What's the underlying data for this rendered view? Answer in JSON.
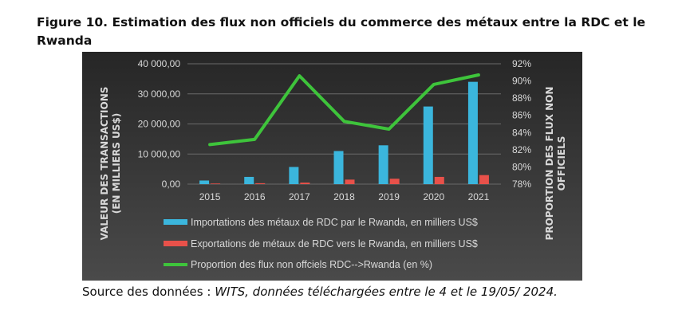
{
  "figure": {
    "title": "Figure 10. Estimation des flux non officiels du commerce des métaux entre la RDC et le Rwanda",
    "source_label": "Source des données : ",
    "source_text": "WITS, données téléchargées entre le 4 et le 19/05/ 2024."
  },
  "colors": {
    "panel_top": "#262626",
    "panel_bottom": "#4a4a4a",
    "grid": "#6a6a6a",
    "text": "#d9d9d9",
    "imports": "#3bb6dd",
    "exports": "#e8514a",
    "proportion": "#3ec43b"
  },
  "chart_data": {
    "type": "bar",
    "categories": [
      "2015",
      "2016",
      "2017",
      "2018",
      "2019",
      "2020",
      "2021"
    ],
    "ylabel": "VALEUR DES TRANSACTIONS (EN MILLIERS US$)",
    "y2label": "PROPORTION DES FLUX NON OFFICIELS",
    "ylim": [
      0,
      40000
    ],
    "y2lim": [
      78,
      92
    ],
    "yticks": [
      "0,00",
      "10 000,00",
      "20 000,00",
      "30 000,00",
      "40 000,00"
    ],
    "y2ticks": [
      "78%",
      "80%",
      "82%",
      "84%",
      "86%",
      "88%",
      "90%",
      "92%"
    ],
    "grid": true,
    "legend_position": "bottom",
    "series": [
      {
        "name": "Importations des métaux de RDC par le Rwanda, en milliers US$",
        "type": "bar",
        "axis": "left",
        "values": [
          1200,
          2400,
          5700,
          11000,
          12900,
          25800,
          34000
        ]
      },
      {
        "name": "Exportations de métaux de RDC vers le Rwanda, en milliers US$",
        "type": "bar",
        "axis": "left",
        "values": [
          200,
          300,
          500,
          1500,
          1800,
          2400,
          3000
        ]
      },
      {
        "name": "Proportion des flux non offciels  RDC-->Rwanda (en %)",
        "type": "line",
        "axis": "right",
        "values": [
          82.6,
          83.2,
          90.6,
          85.3,
          84.4,
          89.6,
          90.7
        ]
      }
    ]
  }
}
